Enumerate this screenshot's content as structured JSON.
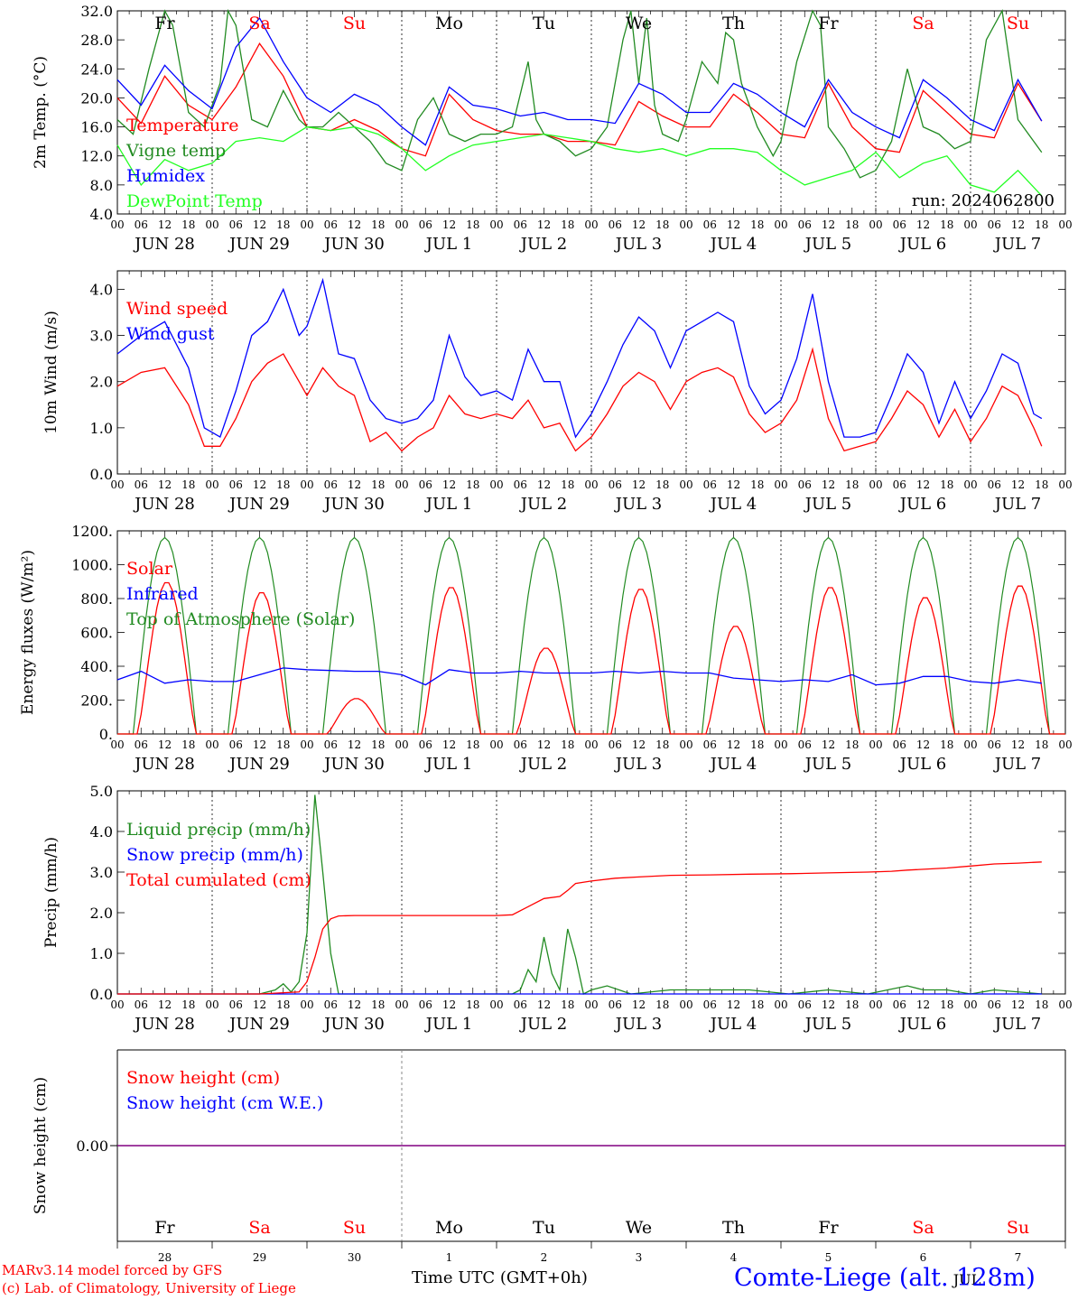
{
  "colors": {
    "red": "#ff0000",
    "blue": "#0000ff",
    "green": "#228b22",
    "lightgreen": "#22ff22",
    "purple": "#800080",
    "black": "#000000"
  },
  "x_time_ticks": [
    "00",
    "06",
    "12",
    "18"
  ],
  "date_labels": [
    "JUN 28",
    "JUN 29",
    "JUN 30",
    "JUL  1",
    "JUL  2",
    "JUL  3",
    "JUL  4",
    "JUL  5",
    "JUL  6",
    "JUL  7"
  ],
  "weekdays": [
    "Fr",
    "Sa",
    "Su",
    "Mo",
    "Tu",
    "We",
    "Th",
    "Fr",
    "Sa",
    "Su"
  ],
  "weekday_colors": [
    "black",
    "red",
    "red",
    "black",
    "black",
    "black",
    "black",
    "black",
    "red",
    "red"
  ],
  "bottom_day_numbers": [
    "28",
    "29",
    "30",
    "1",
    "2",
    "3",
    "4",
    "5",
    "6",
    "7"
  ],
  "month_label": "JUL",
  "x_axis_title": "Time UTC (GMT+0h)",
  "run_label": "run: 2024062800",
  "footer": {
    "model_line": "MARv3.14 model forced by GFS",
    "copyright_line": "(c) Lab. of Climatology, University of Liege",
    "station": "Comte-Liege (alt. 128m)"
  },
  "chart_data": [
    {
      "type": "line",
      "ylabel": "2m Temp. (°C)",
      "ylim": [
        4,
        32
      ],
      "yticks": [
        "4.0",
        "8.0",
        "12.0",
        "16.0",
        "20.0",
        "24.0",
        "28.0",
        "32.0"
      ],
      "x_unit": "hours since Jun 28 00 UTC",
      "series": [
        {
          "name": "Temperature",
          "color": "red",
          "x": [
            0,
            6,
            12,
            18,
            24,
            30,
            36,
            42,
            48,
            54,
            60,
            66,
            72,
            78,
            84,
            90,
            96,
            102,
            108,
            114,
            120,
            126,
            132,
            138,
            144,
            150,
            156,
            162,
            168,
            174,
            180,
            186,
            192,
            198,
            204,
            210,
            216,
            222,
            228,
            234
          ],
          "y": [
            20,
            16.5,
            23,
            19,
            17,
            21.5,
            27.5,
            23,
            16,
            15.5,
            17,
            15.5,
            13,
            12,
            20.5,
            17,
            15.5,
            15,
            15,
            14,
            14,
            13.5,
            19.5,
            17.5,
            16,
            16,
            20.5,
            18,
            15,
            14.5,
            22,
            16,
            13,
            12.5,
            21,
            18,
            15,
            14.5,
            22,
            16.8
          ]
        },
        {
          "name": "Vigne temp",
          "color": "green",
          "x": [
            0,
            4,
            8,
            12,
            14,
            18,
            22,
            26,
            28,
            30,
            34,
            38,
            42,
            46,
            48,
            52,
            56,
            60,
            64,
            68,
            72,
            76,
            80,
            84,
            88,
            92,
            96,
            100,
            104,
            106,
            108,
            112,
            116,
            120,
            124,
            128,
            130,
            132,
            134,
            136,
            138,
            142,
            144,
            148,
            152,
            154,
            156,
            158,
            162,
            166,
            168,
            172,
            176,
            178,
            180,
            184,
            188,
            192,
            196,
            200,
            204,
            208,
            212,
            216,
            220,
            224,
            228,
            232,
            234
          ],
          "y": [
            17,
            15,
            24,
            32,
            30,
            18,
            16,
            22,
            32,
            30,
            17,
            16,
            21,
            17,
            16,
            16,
            18,
            16,
            14,
            11,
            10,
            17,
            20,
            15,
            14,
            15,
            15,
            16,
            25,
            17,
            15,
            14,
            12,
            13,
            16,
            28,
            32,
            22,
            31,
            19,
            15,
            14,
            17,
            25,
            22,
            29,
            28,
            22,
            16,
            12,
            14,
            25,
            32,
            30,
            16,
            13,
            9,
            10,
            14,
            24,
            16,
            15,
            13,
            14,
            28,
            32,
            17,
            14,
            12.5
          ]
        },
        {
          "name": "Humidex",
          "color": "blue",
          "x": [
            0,
            6,
            12,
            18,
            24,
            30,
            36,
            42,
            48,
            54,
            60,
            66,
            72,
            78,
            84,
            90,
            96,
            102,
            108,
            114,
            120,
            126,
            132,
            138,
            144,
            150,
            156,
            162,
            168,
            174,
            180,
            186,
            192,
            198,
            204,
            210,
            216,
            222,
            228,
            234
          ],
          "y": [
            22.5,
            19,
            24.5,
            21,
            18.5,
            27,
            31,
            25,
            20,
            18,
            20.5,
            19,
            16,
            13.5,
            21.5,
            19,
            18.5,
            17.5,
            18,
            17,
            17,
            16.5,
            22,
            20.5,
            18,
            18,
            22,
            20.5,
            18,
            16,
            22.5,
            18,
            16,
            14.5,
            22.5,
            20,
            17,
            15.5,
            22.5,
            16.8
          ]
        },
        {
          "name": "DewPoint Temp",
          "color": "lightgreen",
          "x": [
            0,
            6,
            12,
            18,
            24,
            30,
            36,
            42,
            48,
            54,
            60,
            66,
            72,
            78,
            84,
            90,
            96,
            102,
            108,
            114,
            120,
            126,
            132,
            138,
            144,
            150,
            156,
            162,
            168,
            174,
            180,
            186,
            192,
            198,
            204,
            210,
            216,
            222,
            228,
            234
          ],
          "y": [
            13.5,
            8,
            11.5,
            10,
            11,
            14,
            14.5,
            14,
            16,
            15.5,
            16,
            15,
            13,
            10,
            12,
            13.5,
            14,
            14.5,
            15,
            14.5,
            14,
            13,
            12.5,
            13,
            12,
            13,
            13,
            12.5,
            10,
            8,
            9,
            10,
            12.5,
            9,
            11,
            12,
            8,
            7,
            10,
            6.5
          ]
        }
      ]
    },
    {
      "type": "line",
      "ylabel": "10m Wind (m/s)",
      "ylim": [
        0,
        4.4
      ],
      "yticks": [
        "0.0",
        "1.0",
        "2.0",
        "3.0",
        "4.0"
      ],
      "x_unit": "hours since Jun 28 00 UTC",
      "series": [
        {
          "name": "Wind speed",
          "color": "red",
          "x": [
            0,
            6,
            12,
            18,
            22,
            26,
            30,
            34,
            38,
            42,
            46,
            48,
            52,
            56,
            60,
            64,
            68,
            72,
            76,
            80,
            84,
            88,
            92,
            96,
            100,
            104,
            108,
            112,
            116,
            120,
            124,
            128,
            132,
            136,
            140,
            144,
            148,
            152,
            156,
            160,
            164,
            168,
            172,
            176,
            180,
            184,
            188,
            192,
            196,
            200,
            204,
            208,
            212,
            216,
            220,
            224,
            228,
            232,
            234
          ],
          "y": [
            1.9,
            2.2,
            2.3,
            1.5,
            0.6,
            0.6,
            1.2,
            2.0,
            2.4,
            2.6,
            2.0,
            1.7,
            2.3,
            1.9,
            1.7,
            0.7,
            0.9,
            0.5,
            0.8,
            1.0,
            1.7,
            1.3,
            1.2,
            1.3,
            1.2,
            1.6,
            1.0,
            1.1,
            0.5,
            0.8,
            1.3,
            1.9,
            2.2,
            2.0,
            1.4,
            2.0,
            2.2,
            2.3,
            2.1,
            1.3,
            0.9,
            1.1,
            1.6,
            2.7,
            1.2,
            0.5,
            0.6,
            0.7,
            1.2,
            1.8,
            1.5,
            0.8,
            1.4,
            0.7,
            1.2,
            1.9,
            1.7,
            1.0,
            0.6
          ]
        },
        {
          "name": "Wind gust",
          "color": "blue",
          "x": [
            0,
            6,
            12,
            18,
            22,
            26,
            30,
            34,
            38,
            42,
            46,
            48,
            52,
            56,
            60,
            64,
            68,
            72,
            76,
            80,
            84,
            88,
            92,
            96,
            100,
            104,
            108,
            112,
            116,
            120,
            124,
            128,
            132,
            136,
            140,
            144,
            148,
            152,
            156,
            160,
            164,
            168,
            172,
            176,
            180,
            184,
            188,
            192,
            196,
            200,
            204,
            208,
            212,
            216,
            220,
            224,
            228,
            232,
            234
          ],
          "y": [
            2.6,
            3.0,
            3.3,
            2.3,
            1.0,
            0.8,
            1.8,
            3.0,
            3.3,
            4.0,
            3.0,
            3.2,
            4.2,
            2.6,
            2.5,
            1.6,
            1.2,
            1.1,
            1.2,
            1.6,
            3.0,
            2.1,
            1.7,
            1.8,
            1.6,
            2.7,
            2.0,
            2.0,
            0.8,
            1.3,
            2.0,
            2.8,
            3.4,
            3.1,
            2.3,
            3.1,
            3.3,
            3.5,
            3.3,
            1.9,
            1.3,
            1.6,
            2.5,
            3.9,
            2.0,
            0.8,
            0.8,
            0.9,
            1.7,
            2.6,
            2.2,
            1.1,
            2.0,
            1.2,
            1.8,
            2.6,
            2.4,
            1.3,
            1.2
          ]
        }
      ]
    },
    {
      "type": "line",
      "ylabel": "Energy fluxes (W/m²)",
      "ylim": [
        0,
        1200
      ],
      "yticks": [
        "0.",
        "200.",
        "400.",
        "600.",
        "800.",
        "1000.",
        "1200."
      ],
      "x_unit": "hours since Jun 28 00 UTC",
      "series": [
        {
          "name": "Solar",
          "color": "red",
          "peaks": [
            900,
            840,
            210,
            870,
            510,
            860,
            640,
            870,
            810,
            880
          ]
        },
        {
          "name": "Infrared",
          "color": "blue",
          "x": [
            0,
            6,
            12,
            18,
            24,
            30,
            36,
            42,
            48,
            54,
            60,
            66,
            72,
            78,
            84,
            90,
            96,
            102,
            108,
            114,
            120,
            126,
            132,
            138,
            144,
            150,
            156,
            162,
            168,
            174,
            180,
            186,
            192,
            198,
            204,
            210,
            216,
            222,
            228,
            234
          ],
          "y": [
            320,
            370,
            300,
            320,
            310,
            310,
            350,
            390,
            380,
            375,
            370,
            370,
            350,
            290,
            380,
            360,
            360,
            370,
            360,
            360,
            360,
            370,
            360,
            370,
            360,
            360,
            330,
            320,
            310,
            320,
            310,
            350,
            290,
            300,
            340,
            340,
            310,
            300,
            320,
            300
          ]
        },
        {
          "name": "Top of Atmosphere (Solar)",
          "color": "green",
          "peak": 1160
        }
      ]
    },
    {
      "type": "line",
      "ylabel": "Precip (mm/h)",
      "ylim": [
        0,
        5
      ],
      "yticks": [
        "0.0",
        "1.0",
        "2.0",
        "3.0",
        "4.0",
        "5.0"
      ],
      "x_unit": "hours since Jun 28 00 UTC",
      "series": [
        {
          "name": "Liquid precip (mm/h)",
          "color": "green",
          "x": [
            0,
            36,
            40,
            42,
            44,
            46,
            48,
            50,
            52,
            54,
            56,
            58,
            60,
            96,
            100,
            102,
            104,
            106,
            108,
            110,
            112,
            114,
            116,
            118,
            120,
            124,
            130,
            140,
            150,
            160,
            170,
            180,
            190,
            200,
            204,
            210,
            216,
            222,
            234
          ],
          "y": [
            0,
            0,
            0.1,
            0.25,
            0.05,
            0.3,
            1.5,
            4.9,
            3.0,
            1.0,
            0,
            0,
            0,
            0,
            0,
            0.1,
            0.6,
            0.3,
            1.4,
            0.5,
            0.1,
            1.6,
            0.9,
            0,
            0.1,
            0.2,
            0,
            0.1,
            0.1,
            0.1,
            0,
            0.1,
            0,
            0.2,
            0.1,
            0.1,
            0,
            0.1,
            0
          ]
        },
        {
          "name": "Snow precip (mm/h)",
          "color": "blue",
          "x": [
            0,
            234
          ],
          "y": [
            0,
            0
          ]
        },
        {
          "name": "Total cumulated (cm)",
          "color": "red",
          "x": [
            0,
            36,
            46,
            48,
            50,
            52,
            54,
            56,
            60,
            96,
            100,
            104,
            108,
            112,
            114,
            116,
            120,
            126,
            132,
            140,
            150,
            160,
            170,
            180,
            190,
            196,
            200,
            210,
            216,
            222,
            228,
            234
          ],
          "y": [
            0,
            0,
            0.05,
            0.3,
            0.9,
            1.6,
            1.85,
            1.92,
            1.93,
            1.93,
            1.95,
            2.15,
            2.35,
            2.4,
            2.55,
            2.72,
            2.78,
            2.85,
            2.88,
            2.92,
            2.93,
            2.95,
            2.96,
            2.98,
            3.0,
            3.02,
            3.05,
            3.1,
            3.15,
            3.2,
            3.22,
            3.25
          ]
        }
      ]
    },
    {
      "type": "line",
      "ylabel": "Snow height (cm)",
      "yticks": [
        "0.00"
      ],
      "x_unit": "hours since Jun 28 00 UTC",
      "series": [
        {
          "name": "Snow height (cm)",
          "color": "red",
          "x": [
            0,
            234
          ],
          "y": [
            0,
            0
          ]
        },
        {
          "name": "Snow height (cm W.E.)",
          "color": "blue",
          "x": [
            0,
            234
          ],
          "y": [
            0,
            0
          ]
        }
      ]
    }
  ]
}
